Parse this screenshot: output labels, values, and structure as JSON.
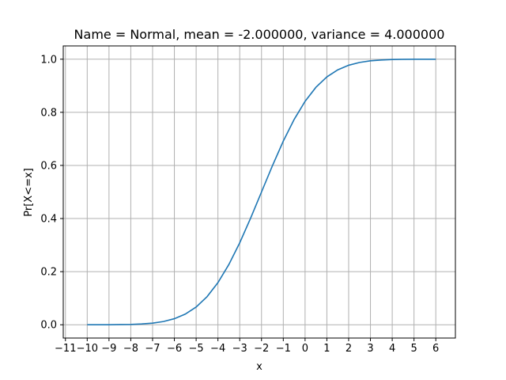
{
  "chart_data": {
    "type": "line",
    "title": "Name = Normal, mean = -2.000000, variance = 4.000000",
    "xlabel": "x",
    "ylabel": "Pr[X<=x]",
    "xlim": [
      -11.1,
      6.9
    ],
    "ylim": [
      -0.05,
      1.05
    ],
    "xticks": [
      -11,
      -10,
      -9,
      -8,
      -7,
      -6,
      -5,
      -4,
      -3,
      -2,
      -1,
      0,
      1,
      2,
      3,
      4,
      5,
      6
    ],
    "xtick_labels": [
      "−11",
      "−10",
      "−9",
      "−8",
      "−7",
      "−6",
      "−5",
      "−4",
      "−3",
      "−2",
      "−1",
      "0",
      "1",
      "2",
      "3",
      "4",
      "5",
      "6"
    ],
    "yticks": [
      0.0,
      0.2,
      0.4,
      0.6,
      0.8,
      1.0
    ],
    "ytick_labels": [
      "0.0",
      "0.2",
      "0.4",
      "0.6",
      "0.8",
      "1.0"
    ],
    "grid": true,
    "series": [
      {
        "color": "#1f77b4",
        "x": [
          -10,
          -9.5,
          -9,
          -8.5,
          -8,
          -7.5,
          -7,
          -6.5,
          -6,
          -5.5,
          -5,
          -4.5,
          -4,
          -3.5,
          -3,
          -2.5,
          -2,
          -1.5,
          -1,
          -0.5,
          0,
          0.5,
          1,
          1.5,
          2,
          2.5,
          3,
          3.5,
          4,
          4.5,
          5,
          5.5,
          6
        ],
        "y": [
          3e-05,
          0.00023,
          0.0002,
          0.0009,
          0.0013,
          0.003,
          0.0062,
          0.0122,
          0.0228,
          0.0401,
          0.0668,
          0.1056,
          0.1587,
          0.2266,
          0.3085,
          0.4013,
          0.5,
          0.5987,
          0.6915,
          0.7734,
          0.8413,
          0.8944,
          0.9332,
          0.9599,
          0.9772,
          0.9878,
          0.9938,
          0.997,
          0.9987,
          0.9994,
          0.9998,
          0.9999,
          1.0
        ]
      }
    ]
  }
}
